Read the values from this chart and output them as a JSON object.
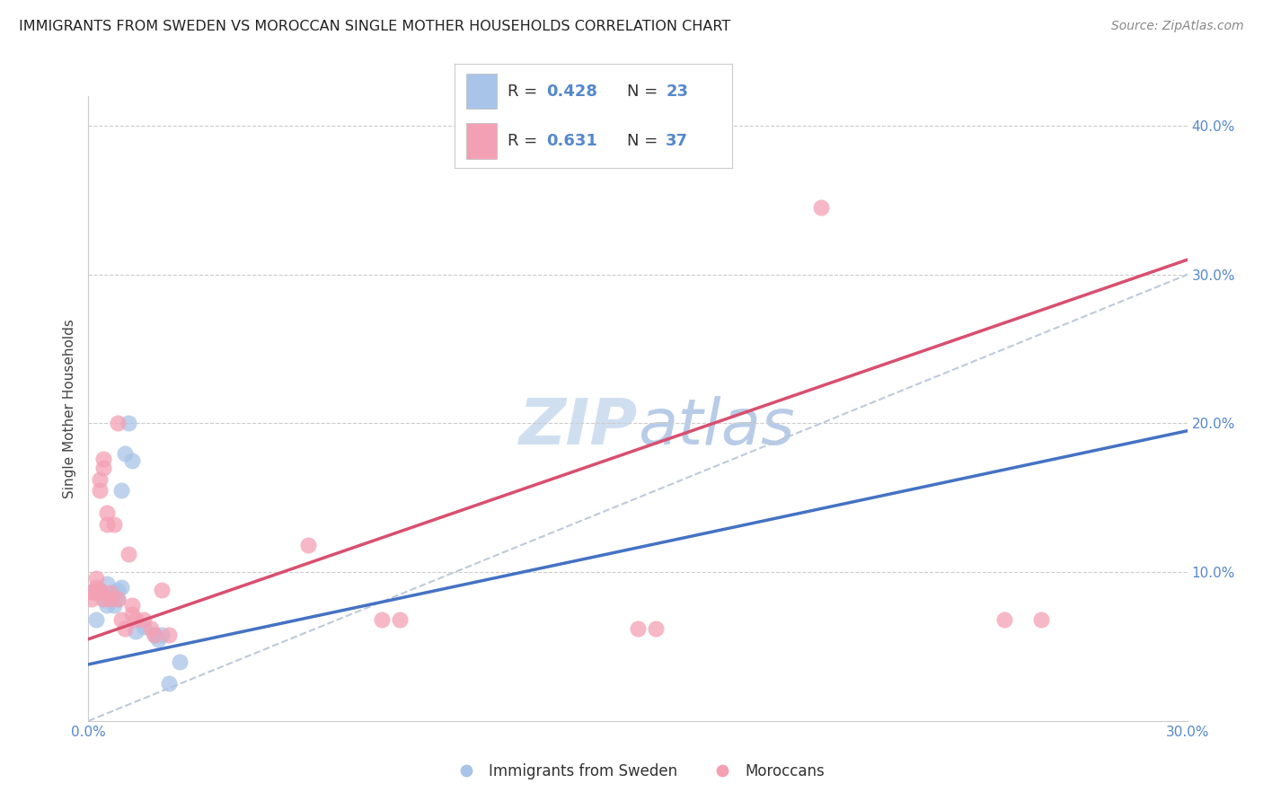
{
  "title": "IMMIGRANTS FROM SWEDEN VS MOROCCAN SINGLE MOTHER HOUSEHOLDS CORRELATION CHART",
  "source": "Source: ZipAtlas.com",
  "ylabel": "Single Mother Households",
  "xlim": [
    0.0,
    0.3
  ],
  "ylim": [
    0.0,
    0.42
  ],
  "xticks": [
    0.0,
    0.05,
    0.1,
    0.15,
    0.2,
    0.25,
    0.3
  ],
  "yticks": [
    0.0,
    0.1,
    0.2,
    0.3,
    0.4
  ],
  "legend_blue_r": "0.428",
  "legend_blue_n": "23",
  "legend_pink_r": "0.631",
  "legend_pink_n": "37",
  "legend_blue_label": "Immigrants from Sweden",
  "legend_pink_label": "Moroccans",
  "blue_color": "#a8c4e8",
  "pink_color": "#f4a0b4",
  "blue_line_color": "#4472c4",
  "pink_line_color": "#d94f6e",
  "diag_color": "#b8c4d8",
  "watermark_color": "#d0dff0",
  "blue_scatter": [
    [
      0.001,
      0.087
    ],
    [
      0.002,
      0.068
    ],
    [
      0.003,
      0.088
    ],
    [
      0.004,
      0.082
    ],
    [
      0.005,
      0.092
    ],
    [
      0.005,
      0.078
    ],
    [
      0.006,
      0.082
    ],
    [
      0.007,
      0.078
    ],
    [
      0.007,
      0.086
    ],
    [
      0.008,
      0.082
    ],
    [
      0.008,
      0.088
    ],
    [
      0.009,
      0.09
    ],
    [
      0.009,
      0.155
    ],
    [
      0.01,
      0.18
    ],
    [
      0.011,
      0.2
    ],
    [
      0.012,
      0.175
    ],
    [
      0.013,
      0.06
    ],
    [
      0.015,
      0.063
    ],
    [
      0.018,
      0.058
    ],
    [
      0.019,
      0.055
    ],
    [
      0.02,
      0.058
    ],
    [
      0.022,
      0.025
    ],
    [
      0.025,
      0.04
    ]
  ],
  "pink_scatter": [
    [
      0.001,
      0.087
    ],
    [
      0.001,
      0.082
    ],
    [
      0.002,
      0.09
    ],
    [
      0.002,
      0.086
    ],
    [
      0.002,
      0.096
    ],
    [
      0.003,
      0.155
    ],
    [
      0.003,
      0.162
    ],
    [
      0.003,
      0.088
    ],
    [
      0.004,
      0.176
    ],
    [
      0.004,
      0.082
    ],
    [
      0.004,
      0.17
    ],
    [
      0.005,
      0.132
    ],
    [
      0.005,
      0.14
    ],
    [
      0.006,
      0.086
    ],
    [
      0.006,
      0.082
    ],
    [
      0.007,
      0.132
    ],
    [
      0.008,
      0.2
    ],
    [
      0.008,
      0.082
    ],
    [
      0.009,
      0.068
    ],
    [
      0.01,
      0.062
    ],
    [
      0.011,
      0.112
    ],
    [
      0.012,
      0.078
    ],
    [
      0.012,
      0.072
    ],
    [
      0.013,
      0.068
    ],
    [
      0.015,
      0.068
    ],
    [
      0.017,
      0.062
    ],
    [
      0.018,
      0.058
    ],
    [
      0.02,
      0.088
    ],
    [
      0.022,
      0.058
    ],
    [
      0.06,
      0.118
    ],
    [
      0.08,
      0.068
    ],
    [
      0.085,
      0.068
    ],
    [
      0.15,
      0.062
    ],
    [
      0.155,
      0.062
    ],
    [
      0.2,
      0.345
    ],
    [
      0.25,
      0.068
    ],
    [
      0.26,
      0.068
    ]
  ],
  "background_color": "#ffffff",
  "grid_color": "#cccccc"
}
